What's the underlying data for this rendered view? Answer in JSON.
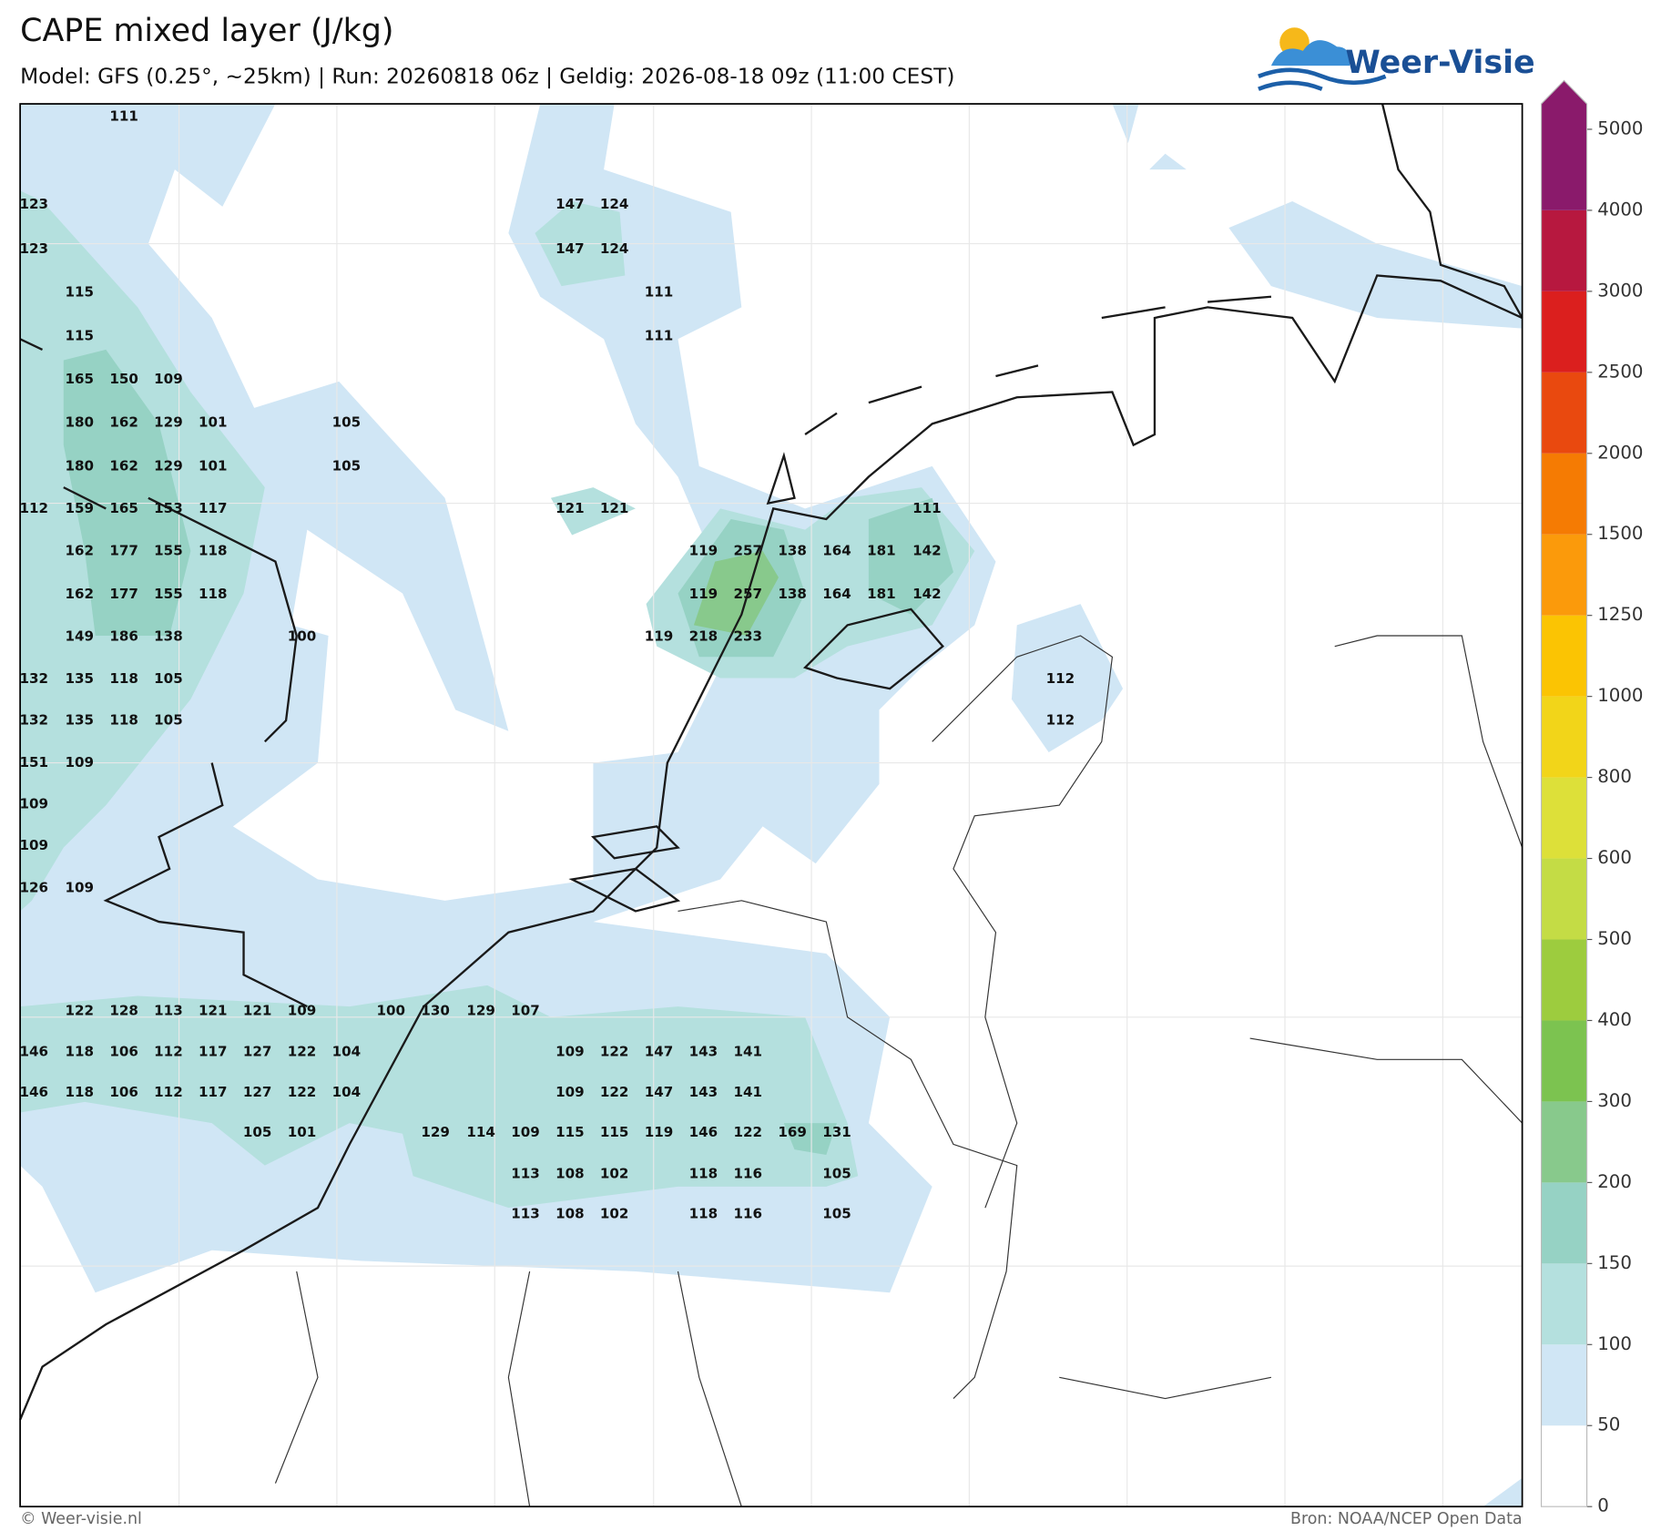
{
  "header": {
    "title": "CAPE mixed layer (J/kg)",
    "subtitle": "Model: GFS (0.25°, ~25km)  |  Run: 20260818 06z  |  Geldig: 2026-08-18 09z (11:00 CEST)",
    "logo": "Weer-Visie"
  },
  "colorbar": {
    "ticks": [
      0,
      50,
      100,
      150,
      200,
      300,
      400,
      500,
      600,
      800,
      1000,
      1250,
      1500,
      2000,
      2500,
      3000,
      4000,
      5000
    ],
    "colors": [
      "#ffffff",
      "#d0e6f5",
      "#b4e0de",
      "#96d2c4",
      "#88c98c",
      "#7cc350",
      "#9dcc3e",
      "#c4dc45",
      "#dde039",
      "#f2d519",
      "#fbc403",
      "#fb9a0b",
      "#f57b03",
      "#e9490f",
      "#db1f1e",
      "#b7183f",
      "#8a1a6b"
    ]
  },
  "value_labels": [
    [
      111
    ],
    [
      123,
      147,
      124
    ],
    [
      123,
      147,
      124
    ],
    [
      115,
      111
    ],
    [
      115,
      111
    ],
    [
      165,
      150,
      109
    ],
    [
      180,
      162,
      129,
      101,
      105
    ],
    [
      180,
      162,
      129,
      101,
      105
    ],
    [
      112,
      159,
      165,
      153,
      117,
      121,
      121,
      111
    ],
    [
      162,
      177,
      155,
      118,
      119,
      257,
      138,
      164,
      181,
      142
    ],
    [
      162,
      177,
      155,
      118,
      119,
      257,
      138,
      164,
      181,
      142
    ],
    [
      149,
      186,
      138,
      100,
      119,
      218,
      233
    ],
    [
      132,
      135,
      118,
      105,
      112
    ],
    [
      132,
      135,
      118,
      105,
      112
    ],
    [
      151,
      109
    ],
    [
      109
    ],
    [
      109
    ],
    [
      126,
      109
    ],
    [
      122,
      128,
      113,
      121,
      121,
      109,
      100,
      130,
      129,
      107
    ],
    [
      146,
      118,
      106,
      112,
      117,
      127,
      122,
      104,
      109,
      122,
      147,
      143,
      141
    ],
    [
      146,
      118,
      106,
      112,
      117,
      127,
      122,
      104,
      109,
      122,
      147,
      143,
      141
    ],
    [
      105,
      101,
      129,
      114,
      109,
      115,
      115,
      119,
      146,
      122,
      169,
      131
    ],
    [
      113,
      108,
      102,
      118,
      116,
      105
    ],
    [
      113,
      108,
      102,
      118,
      116,
      105
    ]
  ],
  "footer": {
    "left": "© Weer-visie.nl",
    "right": "Bron: NOAA/NCEP Open Data"
  }
}
